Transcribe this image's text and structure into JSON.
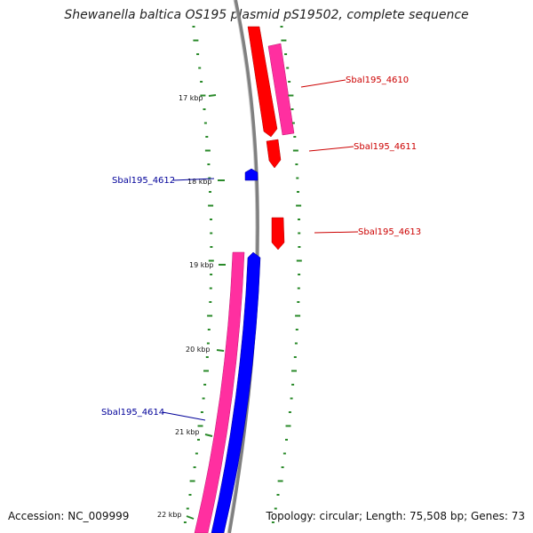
{
  "title": "Shewanella baltica OS195 plasmid pS19502, complete sequence",
  "footer": {
    "accession": "Accession: NC_009999",
    "summary": "Topology: circular; Length: 75,508 bp; Genes: 73"
  },
  "colors": {
    "forward_cds": "#ff0000",
    "forward_gene": "#ff2fa0",
    "reverse_cds": "#0000ff",
    "reverse_gene": "#ff2fa0",
    "backbone": "#808080",
    "gc_ticks": "#2a8a2a",
    "forward_label": "#cc0000",
    "reverse_label": "#000099"
  },
  "scale_labels": [
    "17 kbp",
    "18 kbp",
    "19 kbp",
    "20 kbp",
    "21 kbp",
    "22 kbp"
  ],
  "gene_labels": [
    {
      "name": "Sbal195_4610",
      "strand": "forward"
    },
    {
      "name": "Sbal195_4611",
      "strand": "forward"
    },
    {
      "name": "Sbal195_4612",
      "strand": "reverse"
    },
    {
      "name": "Sbal195_4613",
      "strand": "forward"
    },
    {
      "name": "Sbal195_4614",
      "strand": "reverse"
    }
  ]
}
